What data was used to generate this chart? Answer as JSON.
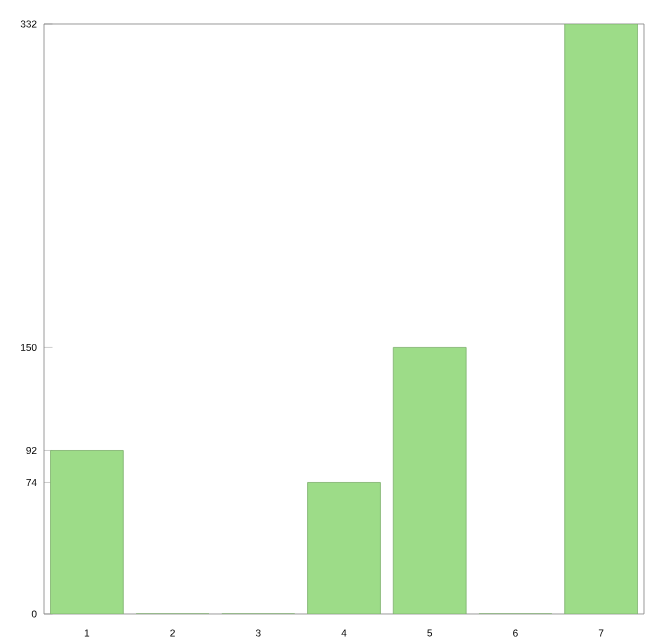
{
  "chart_data": {
    "type": "bar",
    "categories": [
      "1",
      "2",
      "3",
      "4",
      "5",
      "6",
      "7"
    ],
    "values": [
      92,
      0,
      0,
      74,
      150,
      0,
      332
    ],
    "color": "#9ddc88",
    "ylim": [
      0,
      332
    ],
    "yticks": [
      0,
      74,
      92,
      150,
      332
    ],
    "grid": false
  }
}
